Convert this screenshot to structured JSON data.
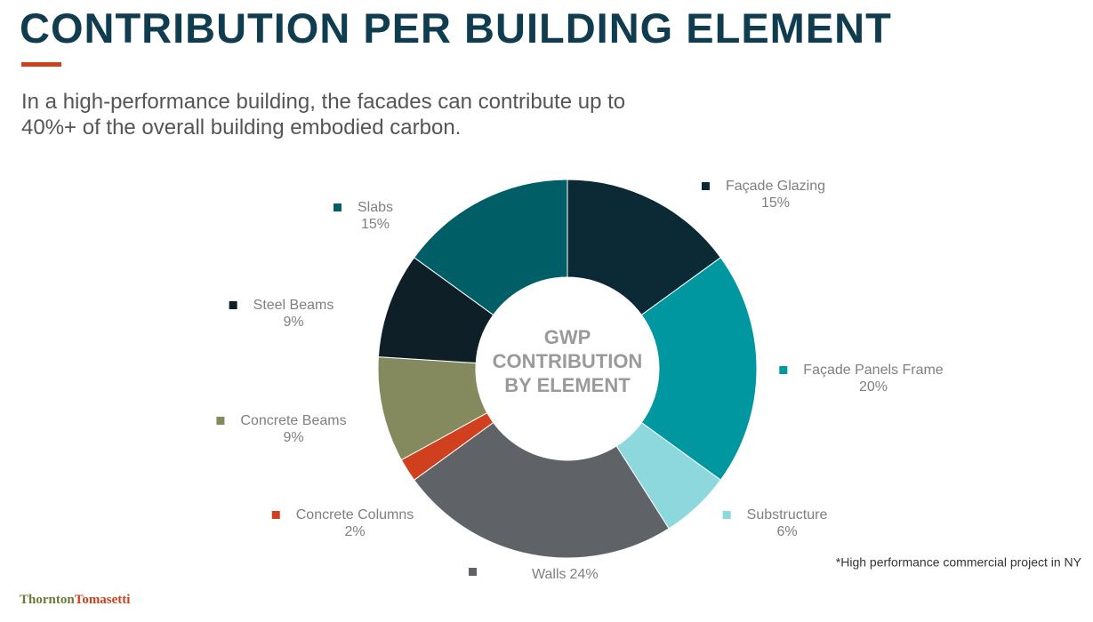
{
  "header": {
    "title": "CONTRIBUTION PER BUILDING ELEMENT",
    "subtitle": "In a high-performance building, the facades can contribute up to 40%+ of the overall building embodied carbon."
  },
  "chart_data": {
    "type": "pie",
    "donut": true,
    "center_label": [
      "GWP",
      "CONTRIBUTION",
      "BY ELEMENT"
    ],
    "categories": [
      "Façade Glazing",
      "Façade Panels Frame",
      "Substructure",
      "Walls",
      "Concrete Columns",
      "Concrete Beams",
      "Steel Beams",
      "Slabs"
    ],
    "values": [
      15,
      20,
      6,
      24,
      2,
      9,
      9,
      15
    ],
    "value_labels": [
      "15%",
      "20%",
      "6%",
      "24%",
      "2%",
      "9%",
      "9%",
      "15%"
    ],
    "colors": [
      "#0b2a36",
      "#0097a0",
      "#8dd8dc",
      "#5f6368",
      "#d0401e",
      "#858a5e",
      "#0e1f27",
      "#005f66"
    ]
  },
  "footnote": "*High performance commercial project in NY",
  "logo": {
    "first": "Thornton",
    "second": "Tomasetti"
  }
}
